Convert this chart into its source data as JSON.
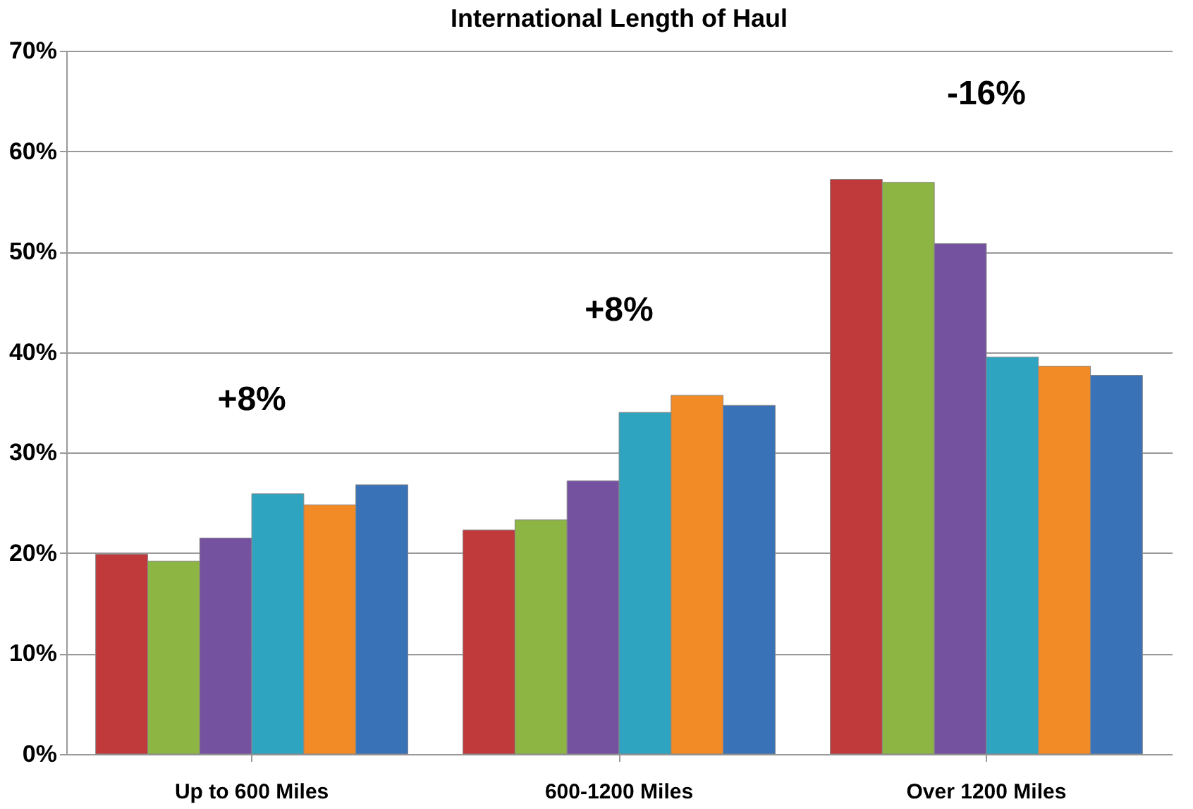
{
  "chart_data": {
    "type": "bar",
    "title": "International Length of Haul",
    "categories": [
      "Up to 600 Miles",
      "600-1200 Miles",
      "Over 1200 Miles"
    ],
    "series": [
      {
        "color": "#c0393b",
        "values": [
          19.9,
          22.3,
          57.2
        ]
      },
      {
        "color": "#8db543",
        "values": [
          19.2,
          23.3,
          56.9
        ]
      },
      {
        "color": "#7452a0",
        "values": [
          21.5,
          27.2,
          50.8
        ]
      },
      {
        "color": "#2ea4c0",
        "values": [
          25.9,
          34.0,
          39.5
        ]
      },
      {
        "color": "#f28a26",
        "values": [
          24.8,
          35.7,
          38.6
        ]
      },
      {
        "color": "#3a72b8",
        "values": [
          26.8,
          34.7,
          37.7
        ]
      }
    ],
    "ylim": [
      0,
      70
    ],
    "yticks": [
      {
        "value": 0,
        "label": "0%"
      },
      {
        "value": 10,
        "label": "10%"
      },
      {
        "value": 20,
        "label": "20%"
      },
      {
        "value": 30,
        "label": "30%"
      },
      {
        "value": 40,
        "label": "40%"
      },
      {
        "value": 50,
        "label": "50%"
      },
      {
        "value": 60,
        "label": "60%"
      },
      {
        "value": 70,
        "label": "70%"
      }
    ],
    "grid": "y",
    "legend": false,
    "annotations": [
      "+8%",
      "+8%",
      "-16%"
    ]
  }
}
